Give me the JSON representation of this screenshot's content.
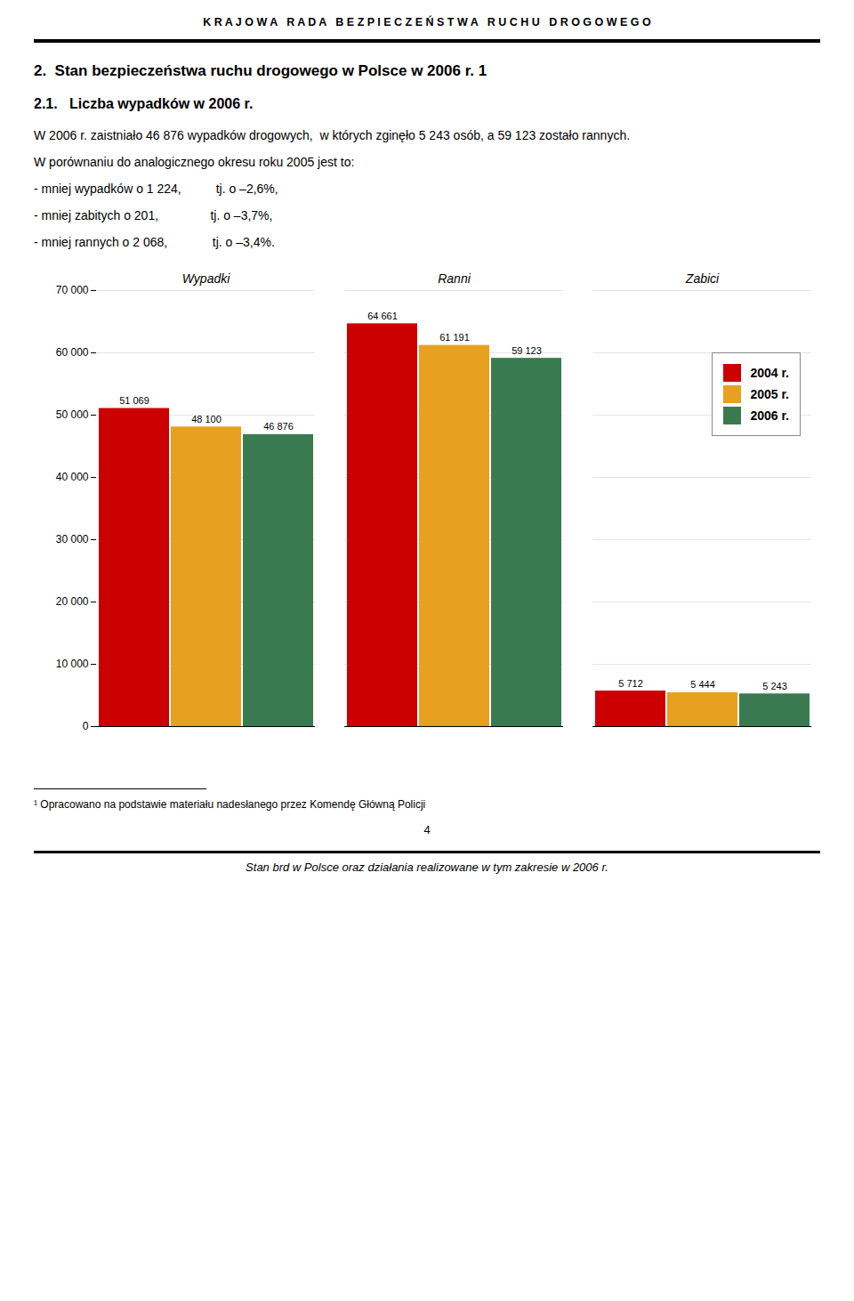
{
  "chart_data": {
    "type": "bar",
    "title": "K R A J O W A   R A D A   B E Z P I E C Z E Ń S T W A   R U C H U   D R O G O W E G O",
    "subtitle": "2.  Stan bezpieczeństwa ruchu drogowego w Polsce w 2006 r. 1",
    "annotations": [
      "2.1.   Liczba wypadków w 2006 r.",
      "W 2006 r. zaistniało 46 876 wypadków drogowych,  w których zginęło 5 243 osób, a 59 123 zostało rannych.",
      "W porównaniu do analogicznego okresu roku 2005 jest to:",
      "- mniej wypadków o 1 224,          tj. o –2,6%,",
      "- mniej zabitych o 201,               tj. o –3,7%,",
      "- mniej rannych o 2 068,             tj. o –3,4%."
    ],
    "footnotes": [
      "¹ Opracowano na podstawie materiału nadesłanego przez Komendę Główną Policji",
      "4",
      "Stan brd w Polsce oraz działania realizowane w tym zakresie w 2006 r."
    ],
    "categories": [
      "Wypadki",
      "Ranni",
      "Zabici"
    ],
    "series": [
      {
        "name": "2004 r.",
        "color": "#CC0000",
        "values": [
          51069,
          64661,
          5712
        ],
        "value_labels": [
          "51 069",
          "64 661",
          "5 712"
        ]
      },
      {
        "name": "2005 r.",
        "color": "#E8A020",
        "values": [
          48100,
          61191,
          5444
        ],
        "value_labels": [
          "48 100",
          "61 191",
          "5 444"
        ]
      },
      {
        "name": "2006 r.",
        "color": "#3A7A50",
        "values": [
          46876,
          59123,
          5243
        ],
        "value_labels": [
          "46 876",
          "59 123",
          "5 243"
        ]
      }
    ],
    "ylim": [
      0,
      70000
    ],
    "yticks": [
      0,
      {
        "value": 10000,
        "label": "10 000"
      },
      {
        "value": 20000,
        "label": "20 000"
      },
      {
        "value": 30000,
        "label": "30 000"
      },
      {
        "value": 40000,
        "label": "40 000"
      },
      {
        "value": 50000,
        "label": "50 000"
      },
      {
        "value": 60000,
        "label": "60 000"
      },
      {
        "value": 70000,
        "label": "70 000"
      }
    ],
    "grid": true,
    "legend": "upper right",
    "data_labels": true
  }
}
